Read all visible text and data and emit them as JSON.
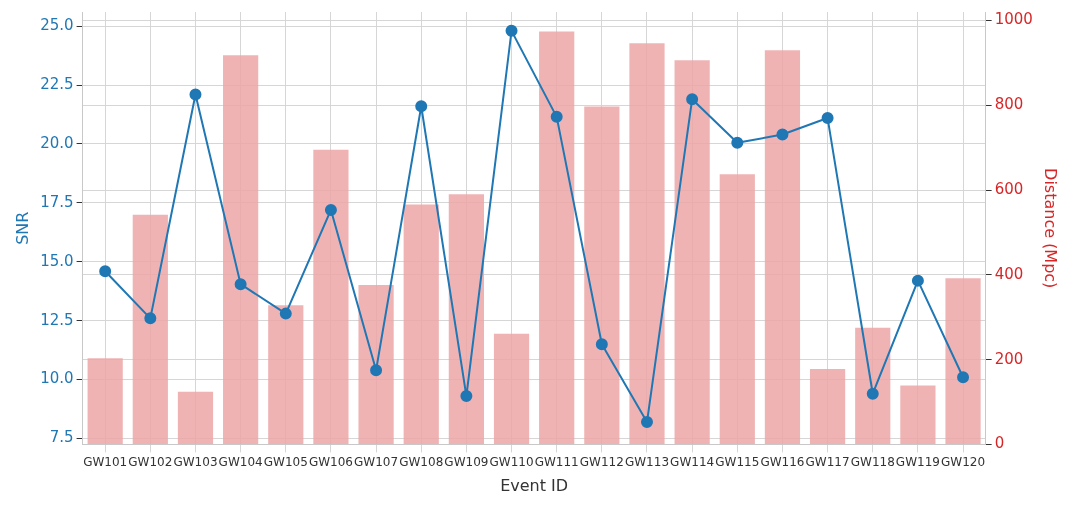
{
  "chart_data": {
    "type": "bar",
    "xlabel": "Event ID",
    "ylabel": "SNR",
    "y2label": "Distance (Mpc)",
    "categories": [
      "GW101",
      "GW102",
      "GW103",
      "GW104",
      "GW105",
      "GW106",
      "GW107",
      "GW108",
      "GW109",
      "GW110",
      "GW111",
      "GW112",
      "GW113",
      "GW114",
      "GW115",
      "GW116",
      "GW117",
      "GW118",
      "GW119",
      "GW120"
    ],
    "series": [
      {
        "type": "line",
        "axis": "y",
        "color": "#1f77b4",
        "marker": "circle",
        "values": [
          14.6,
          12.6,
          22.1,
          14.05,
          12.8,
          17.2,
          10.4,
          21.6,
          9.3,
          24.8,
          21.15,
          11.5,
          8.2,
          21.9,
          20.05,
          20.4,
          21.1,
          9.4,
          14.2,
          10.1
        ]
      },
      {
        "axis": "y2",
        "color": "#eca6a7",
        "values": [
          203,
          542,
          124,
          918,
          328,
          695,
          376,
          566,
          590,
          261,
          974,
          797,
          946,
          906,
          637,
          930,
          178,
          275,
          139,
          392
        ]
      }
    ],
    "ylim": [
      7.25,
      25.6
    ],
    "yticks": [
      7.5,
      {
        "value": 10,
        "label": "10.0"
      },
      12.5,
      {
        "value": 15,
        "label": "15.0"
      },
      17.5,
      {
        "value": 20,
        "label": "20.0"
      },
      22.5,
      {
        "value": 25,
        "label": "25.0"
      }
    ],
    "y2lim": [
      0,
      1020
    ],
    "y2ticks": [
      0,
      200,
      400,
      600,
      800,
      1000
    ],
    "grid": true,
    "legend": false
  }
}
